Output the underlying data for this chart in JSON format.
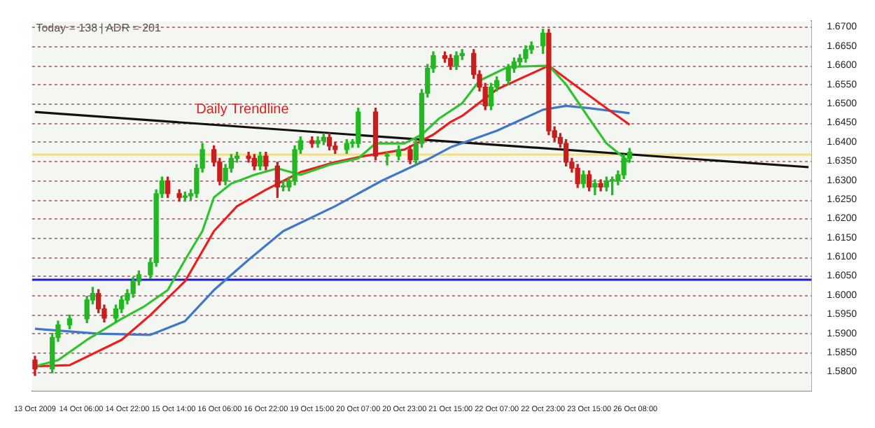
{
  "chart_data": {
    "type": "candlestick",
    "annotations": [
      "Today = 138 | ADR = 201",
      "Daily Trendline"
    ],
    "categories": [
      "13 Oct 2009",
      null,
      null,
      null,
      null,
      null,
      null,
      null,
      "14 Oct 06:00",
      null,
      null,
      null,
      null,
      null,
      null,
      null,
      "14 Oct 22:00",
      null,
      null,
      null,
      null,
      null,
      null,
      null,
      "15 Oct 14:00",
      null,
      null,
      null,
      null,
      null,
      null,
      null,
      "16 Oct 06:00",
      null,
      null,
      null,
      null,
      null,
      null,
      null,
      "16 Oct 22:00",
      null,
      null,
      null,
      null,
      null,
      null,
      null,
      "19 Oct 15:00",
      null,
      null,
      null,
      null,
      null,
      null,
      null,
      "20 Oct 07:00",
      null,
      null,
      null,
      null,
      null,
      null,
      null,
      "20 Oct 23:00",
      null,
      null,
      null,
      null,
      null,
      null,
      null,
      "21 Oct 15:00",
      null,
      null,
      null,
      null,
      null,
      null,
      null,
      "22 Oct 07:00",
      null,
      null,
      null,
      null,
      null,
      null,
      null,
      "22 Oct 23:00",
      null,
      null,
      null,
      null,
      null,
      null,
      null,
      "23 Oct 15:00",
      null,
      null,
      null,
      null,
      null,
      null,
      null,
      "26 Oct 08:00",
      null,
      null,
      null,
      null,
      null,
      null,
      null,
      null,
      null,
      null,
      null,
      null,
      null,
      null,
      null,
      null,
      null,
      null,
      null,
      null,
      null,
      null,
      null,
      null,
      null,
      null,
      null,
      null,
      null,
      null
    ],
    "ohlc": [
      [
        1.583,
        1.584,
        1.579,
        1.5807
      ],
      null,
      null,
      [
        1.5807,
        1.59,
        1.5797,
        1.5889
      ],
      [
        1.5889,
        1.5932,
        1.5879,
        1.5922
      ],
      null,
      [
        1.5922,
        1.5948,
        1.5912,
        1.5938
      ],
      null,
      null,
      [
        1.5938,
        1.5997,
        1.5928,
        1.5987
      ],
      [
        1.5987,
        1.602,
        1.5977,
        1.6004
      ],
      [
        1.6004,
        1.6014,
        1.5954,
        1.5964
      ],
      [
        1.5964,
        1.5974,
        1.593,
        1.594
      ],
      null,
      [
        1.594,
        1.5974,
        1.593,
        1.5964
      ],
      [
        1.5964,
        1.5997,
        1.5954,
        1.5987
      ],
      [
        1.5987,
        1.6014,
        1.5977,
        1.6004
      ],
      [
        1.6004,
        1.6046,
        1.5994,
        1.6036
      ],
      [
        1.6036,
        1.6063,
        1.6026,
        1.6053
      ],
      null,
      [
        1.6053,
        1.6095,
        1.6043,
        1.6085
      ],
      [
        1.6085,
        1.6275,
        1.6075,
        1.6265
      ],
      [
        1.6265,
        1.6308,
        1.6255,
        1.6298
      ],
      [
        1.6298,
        1.6308,
        1.6255,
        1.6265
      ],
      null,
      [
        1.6265,
        1.6275,
        1.6245,
        1.6255
      ],
      [
        1.6255,
        1.6269,
        1.6245,
        1.6259
      ],
      [
        1.6259,
        1.6275,
        1.6249,
        1.6265
      ],
      [
        1.6265,
        1.6341,
        1.6255,
        1.6331
      ],
      [
        1.6331,
        1.6396,
        1.6321,
        1.638
      ],
      null,
      [
        1.638,
        1.639,
        1.6337,
        1.6347
      ],
      [
        1.6347,
        1.6357,
        1.6288,
        1.6298
      ],
      [
        1.6298,
        1.6341,
        1.6288,
        1.6331
      ],
      [
        1.6331,
        1.6367,
        1.6321,
        1.6357
      ],
      [
        1.6357,
        1.6373,
        1.6347,
        1.6363
      ],
      null,
      [
        1.6363,
        1.6373,
        1.6347,
        1.6357
      ],
      [
        1.6357,
        1.6367,
        1.6327,
        1.6337
      ],
      [
        1.6337,
        1.6373,
        1.6327,
        1.6363
      ],
      [
        1.6363,
        1.6373,
        1.6327,
        1.6337
      ],
      null,
      [
        1.6337,
        1.6347,
        1.6255,
        1.6282
      ],
      [
        1.6282,
        1.6298,
        1.6272,
        1.6285
      ],
      [
        1.6282,
        1.6308,
        1.6272,
        1.6298
      ],
      [
        1.6298,
        1.639,
        1.6288,
        1.638
      ],
      [
        1.638,
        1.6413,
        1.637,
        1.6403
      ],
      null,
      [
        1.6403,
        1.6413,
        1.6386,
        1.6396
      ],
      [
        1.6396,
        1.6413,
        1.6386,
        1.6403
      ],
      [
        1.6403,
        1.6422,
        1.6393,
        1.6412
      ],
      [
        1.6412,
        1.6422,
        1.6379,
        1.6389
      ],
      [
        1.6389,
        1.6399,
        1.637,
        1.638
      ],
      null,
      [
        1.638,
        1.6406,
        1.637,
        1.6396
      ],
      [
        1.6396,
        1.6406,
        1.6386,
        1.6399
      ],
      [
        1.6396,
        1.6488,
        1.6386,
        1.6478
      ],
      null,
      null,
      [
        1.6478,
        1.6488,
        1.6353,
        1.6363
      ],
      null,
      [
        1.6363,
        1.6373,
        1.634,
        1.6366
      ],
      null,
      [
        1.6363,
        1.639,
        1.6353,
        1.638
      ],
      null,
      [
        1.638,
        1.639,
        1.6343,
        1.6353
      ],
      [
        1.6353,
        1.6406,
        1.6343,
        1.6396
      ],
      [
        1.6396,
        1.6537,
        1.6386,
        1.6527
      ],
      [
        1.6527,
        1.6602,
        1.6517,
        1.6592
      ],
      [
        1.6592,
        1.6635,
        1.6582,
        1.6625
      ],
      null,
      [
        1.6625,
        1.6635,
        1.6608,
        1.6618
      ],
      [
        1.6618,
        1.6628,
        1.6589,
        1.6599
      ],
      [
        1.6599,
        1.6635,
        1.6589,
        1.6625
      ],
      [
        1.6625,
        1.6641,
        1.6615,
        1.6631
      ],
      null,
      [
        1.6631,
        1.6641,
        1.6566,
        1.6576
      ],
      [
        1.6576,
        1.6586,
        1.6533,
        1.6543
      ],
      [
        1.6543,
        1.6553,
        1.6484,
        1.6494
      ],
      [
        1.6494,
        1.6553,
        1.6484,
        1.6543
      ],
      [
        1.6543,
        1.657,
        1.6533,
        1.656
      ],
      null,
      [
        1.656,
        1.6602,
        1.655,
        1.6592
      ],
      [
        1.6592,
        1.6619,
        1.6582,
        1.6609
      ],
      [
        1.6609,
        1.6628,
        1.6599,
        1.6618
      ],
      [
        1.6618,
        1.6651,
        1.6608,
        1.6641
      ],
      [
        1.6641,
        1.6661,
        1.6631,
        1.6651
      ],
      null,
      [
        1.6651,
        1.6694,
        1.6631,
        1.6684
      ],
      [
        1.6684,
        1.6694,
        1.6419,
        1.6429
      ],
      [
        1.6429,
        1.6439,
        1.6402,
        1.6412
      ],
      [
        1.6412,
        1.6422,
        1.6386,
        1.6396
      ],
      [
        1.6396,
        1.6406,
        1.6337,
        1.6347
      ],
      [
        1.6347,
        1.6357,
        1.6321,
        1.6331
      ],
      [
        1.6331,
        1.6341,
        1.6281,
        1.6291
      ],
      [
        1.6291,
        1.6324,
        1.6281,
        1.6314
      ],
      [
        1.6314,
        1.6324,
        1.6272,
        1.6282
      ],
      [
        1.6282,
        1.6301,
        1.6262,
        1.6291
      ],
      [
        1.6291,
        1.6301,
        1.6272,
        1.6282
      ],
      [
        1.6282,
        1.6308,
        1.6272,
        1.6298
      ],
      [
        1.6298,
        1.6308,
        1.6262,
        1.6301
      ],
      [
        1.6298,
        1.6324,
        1.6288,
        1.6314
      ],
      [
        1.6314,
        1.6367,
        1.6304,
        1.6357
      ],
      [
        1.6357,
        1.6383,
        1.6347,
        1.6373
      ],
      null,
      null,
      null,
      null,
      null,
      null,
      null,
      null,
      null,
      null,
      null,
      null,
      null,
      null,
      null,
      null,
      null,
      null,
      null,
      null,
      null,
      null,
      null,
      null,
      null,
      null,
      null,
      null,
      null,
      null,
      null
    ],
    "colors": [
      "#c81e1e",
      null,
      null,
      "#22b822",
      "#22b822",
      null,
      "#22b822",
      null,
      null,
      "#22b822",
      "#22b822",
      "#c81e1e",
      "#c81e1e",
      null,
      "#22b822",
      "#22b822",
      "#22b822",
      "#22b822",
      "#22b822",
      null,
      "#22b822",
      "#22b822",
      "#22b822",
      "#c81e1e",
      null,
      "#c81e1e",
      "#22b822",
      "#22b822",
      "#22b822",
      "#22b822",
      null,
      "#c81e1e",
      "#c81e1e",
      "#22b822",
      "#22b822",
      "#22b822",
      null,
      "#c81e1e",
      "#c81e1e",
      "#22b822",
      "#c81e1e",
      null,
      "#c81e1e",
      "#22b822",
      "#22b822",
      "#22b822",
      "#22b822",
      null,
      "#c81e1e",
      "#22b822",
      "#22b822",
      "#c81e1e",
      "#c81e1e",
      null,
      "#22b822",
      "#22b822",
      "#22b822",
      null,
      null,
      "#c81e1e",
      null,
      "#22b822",
      null,
      "#22b822",
      null,
      "#c81e1e",
      "#22b822",
      "#22b822",
      "#22b822",
      "#22b822",
      null,
      "#c81e1e",
      "#c81e1e",
      "#22b822",
      "#22b822",
      null,
      "#c81e1e",
      "#c81e1e",
      "#c81e1e",
      "#22b822",
      "#22b822",
      null,
      "#22b822",
      "#22b822",
      "#22b822",
      "#22b822",
      "#22b822",
      null,
      "#22b822",
      "#c81e1e",
      "#c81e1e",
      "#c81e1e",
      "#c81e1e",
      "#c81e1e",
      "#c81e1e",
      "#22b822",
      "#c81e1e",
      "#22b822",
      "#c81e1e",
      "#22b822",
      "#22b822",
      "#22b822",
      "#22b822",
      "#22b822",
      null,
      null,
      null,
      null,
      null,
      null,
      null,
      null,
      null,
      null,
      null,
      null,
      null,
      null,
      null,
      null,
      null,
      null,
      null,
      null,
      null,
      null,
      null,
      null,
      null,
      null,
      null,
      null,
      null,
      null,
      null
    ],
    "series": [
      {
        "type": "line",
        "color": "#2fc42f",
        "values": [
          1.5814,
          null,
          null,
          null,
          1.583,
          null,
          null,
          null,
          null,
          1.5883,
          null,
          null,
          null,
          null,
          null,
          1.5938,
          null,
          null,
          null,
          1.5971,
          null,
          null,
          null,
          1.6013,
          null,
          null,
          1.6092,
          null,
          null,
          1.6167,
          null,
          1.6255,
          null,
          null,
          1.6291,
          null,
          null,
          null,
          1.6314,
          null,
          null,
          null,
          1.6331,
          null,
          null,
          null,
          1.6314,
          null,
          null,
          null,
          null,
          1.634,
          null,
          null,
          null,
          null,
          1.6357,
          null,
          null,
          1.6396,
          null,
          null,
          null,
          null,
          1.6396,
          null,
          null,
          1.6419,
          null,
          null,
          1.6461,
          null,
          null,
          null,
          1.6501,
          null,
          null,
          1.656,
          null,
          null,
          null,
          null,
          1.6596,
          null,
          null,
          null,
          null,
          null,
          null,
          1.6599,
          null,
          null,
          1.655,
          null,
          null,
          null,
          1.6461,
          null,
          null,
          1.6396,
          null,
          null,
          null,
          1.6347,
          null,
          null,
          null,
          null,
          null,
          null,
          null,
          null,
          null,
          null,
          null,
          null,
          null,
          null,
          null,
          null,
          null,
          null,
          null,
          null,
          null,
          null,
          null,
          null,
          null,
          null,
          null,
          null,
          null,
          null,
          null
        ]
      },
      {
        "type": "line",
        "color": "#ee1c1c",
        "values": [
          1.5814,
          null,
          null,
          null,
          null,
          null,
          1.5817,
          null,
          null,
          null,
          null,
          null,
          null,
          null,
          null,
          1.5883,
          null,
          null,
          null,
          null,
          1.5948,
          null,
          null,
          null,
          null,
          null,
          1.6036,
          null,
          null,
          null,
          null,
          1.6167,
          null,
          null,
          null,
          1.6232,
          null,
          null,
          null,
          null,
          1.6275,
          null,
          null,
          null,
          null,
          null,
          1.6321,
          null,
          null,
          null,
          null,
          null,
          1.6347,
          null,
          null,
          null,
          null,
          1.6363,
          null,
          null,
          null,
          null,
          null,
          null,
          1.638,
          null,
          null,
          null,
          null,
          1.6419,
          null,
          null,
          1.6452,
          null,
          1.6468,
          null,
          null,
          null,
          null,
          null,
          1.6537,
          null,
          null,
          null,
          null,
          null,
          null,
          null,
          null,
          1.6599,
          null,
          null,
          null,
          null,
          1.6543,
          null,
          null,
          null,
          null,
          1.6488,
          null,
          null,
          null,
          1.6445,
          null,
          null,
          null,
          null,
          null,
          null,
          null,
          null,
          null,
          null,
          null,
          null,
          null,
          null,
          null,
          null,
          null,
          null,
          null,
          null,
          null,
          null,
          null,
          null,
          null,
          null,
          null,
          null,
          null,
          null,
          null
        ]
      },
      {
        "type": "line",
        "color": "#3f78c8",
        "values": [
          1.5912,
          null,
          null,
          null,
          null,
          null,
          null,
          null,
          null,
          null,
          null,
          1.5899,
          null,
          null,
          null,
          null,
          null,
          null,
          null,
          null,
          1.5896,
          null,
          null,
          null,
          null,
          null,
          1.5932,
          null,
          null,
          null,
          null,
          1.6013,
          null,
          null,
          null,
          null,
          null,
          1.6092,
          null,
          null,
          null,
          null,
          null,
          1.6167,
          null,
          null,
          null,
          null,
          null,
          null,
          null,
          null,
          1.6232,
          null,
          null,
          null,
          null,
          null,
          null,
          null,
          1.6298,
          null,
          null,
          null,
          null,
          null,
          null,
          null,
          1.6354,
          null,
          null,
          null,
          1.6386,
          null,
          null,
          null,
          null,
          null,
          null,
          null,
          1.6429,
          null,
          null,
          null,
          null,
          null,
          null,
          null,
          1.6484,
          null,
          null,
          null,
          1.6494,
          null,
          null,
          null,
          1.6488,
          null,
          null,
          null,
          null,
          null,
          null,
          1.6475,
          null,
          null,
          null,
          null,
          null,
          null,
          null,
          null,
          null,
          null,
          null,
          null,
          null,
          null,
          null,
          null,
          null,
          null,
          null,
          null,
          null,
          null,
          null,
          null,
          null,
          null,
          null,
          null,
          null,
          null,
          null
        ]
      },
      {
        "type": "line",
        "color": "#111111",
        "values": [
          1.6478,
          null,
          null,
          null,
          null,
          null,
          null,
          null,
          null,
          null,
          null,
          null,
          null,
          null,
          null,
          null,
          null,
          null,
          null,
          null,
          null,
          null,
          null,
          null,
          null,
          null,
          null,
          null,
          null,
          null,
          null,
          null,
          null,
          null,
          null,
          null,
          null,
          null,
          null,
          null,
          null,
          null,
          null,
          null,
          null,
          null,
          null,
          null,
          null,
          null,
          null,
          null,
          null,
          null,
          null,
          null,
          null,
          null,
          null,
          null,
          null,
          null,
          null,
          null,
          null,
          null,
          null,
          null,
          null,
          null,
          null,
          null,
          null,
          null,
          null,
          null,
          null,
          null,
          null,
          null,
          null,
          null,
          null,
          null,
          null,
          null,
          null,
          null,
          null,
          null,
          null,
          null,
          null,
          null,
          null,
          null,
          null,
          null,
          null,
          null,
          null,
          null,
          null,
          null,
          null,
          null,
          null,
          null,
          null,
          null,
          null,
          null,
          null,
          null,
          null,
          null,
          null,
          null,
          null,
          null,
          null,
          null,
          null,
          null,
          null,
          null,
          null,
          null,
          null,
          null,
          null,
          null,
          null,
          null,
          1.6334
        ]
      }
    ],
    "ref_lines": [
      {
        "axis": "y",
        "value": 1.6367,
        "color": "#f5df7a"
      },
      {
        "axis": "y",
        "value": 1.604,
        "color": "#1c1cc8"
      }
    ],
    "ylim": [
      1.575,
      1.6715
    ],
    "yticks": [
      {
        "value": 1.58,
        "label": "1.5800"
      },
      {
        "value": 1.585,
        "label": "1.5850"
      },
      {
        "value": 1.59,
        "label": "1.5900"
      },
      {
        "value": 1.595,
        "label": "1.5950"
      },
      {
        "value": 1.6,
        "label": "1.6000"
      },
      {
        "value": 1.605,
        "label": "1.6050"
      },
      {
        "value": 1.61,
        "label": "1.6100"
      },
      {
        "value": 1.615,
        "label": "1.6150"
      },
      {
        "value": 1.62,
        "label": "1.6200"
      },
      {
        "value": 1.625,
        "label": "1.6250"
      },
      {
        "value": 1.63,
        "label": "1.6300"
      },
      {
        "value": 1.635,
        "label": "1.6350"
      },
      {
        "value": 1.64,
        "label": "1.6400"
      },
      {
        "value": 1.645,
        "label": "1.6450"
      },
      {
        "value": 1.65,
        "label": "1.6500"
      },
      {
        "value": 1.655,
        "label": "1.6550"
      },
      {
        "value": 1.66,
        "label": "1.6600"
      },
      {
        "value": 1.665,
        "label": "1.6650"
      },
      {
        "value": 1.67,
        "label": "1.6700"
      }
    ],
    "grid": "y"
  }
}
